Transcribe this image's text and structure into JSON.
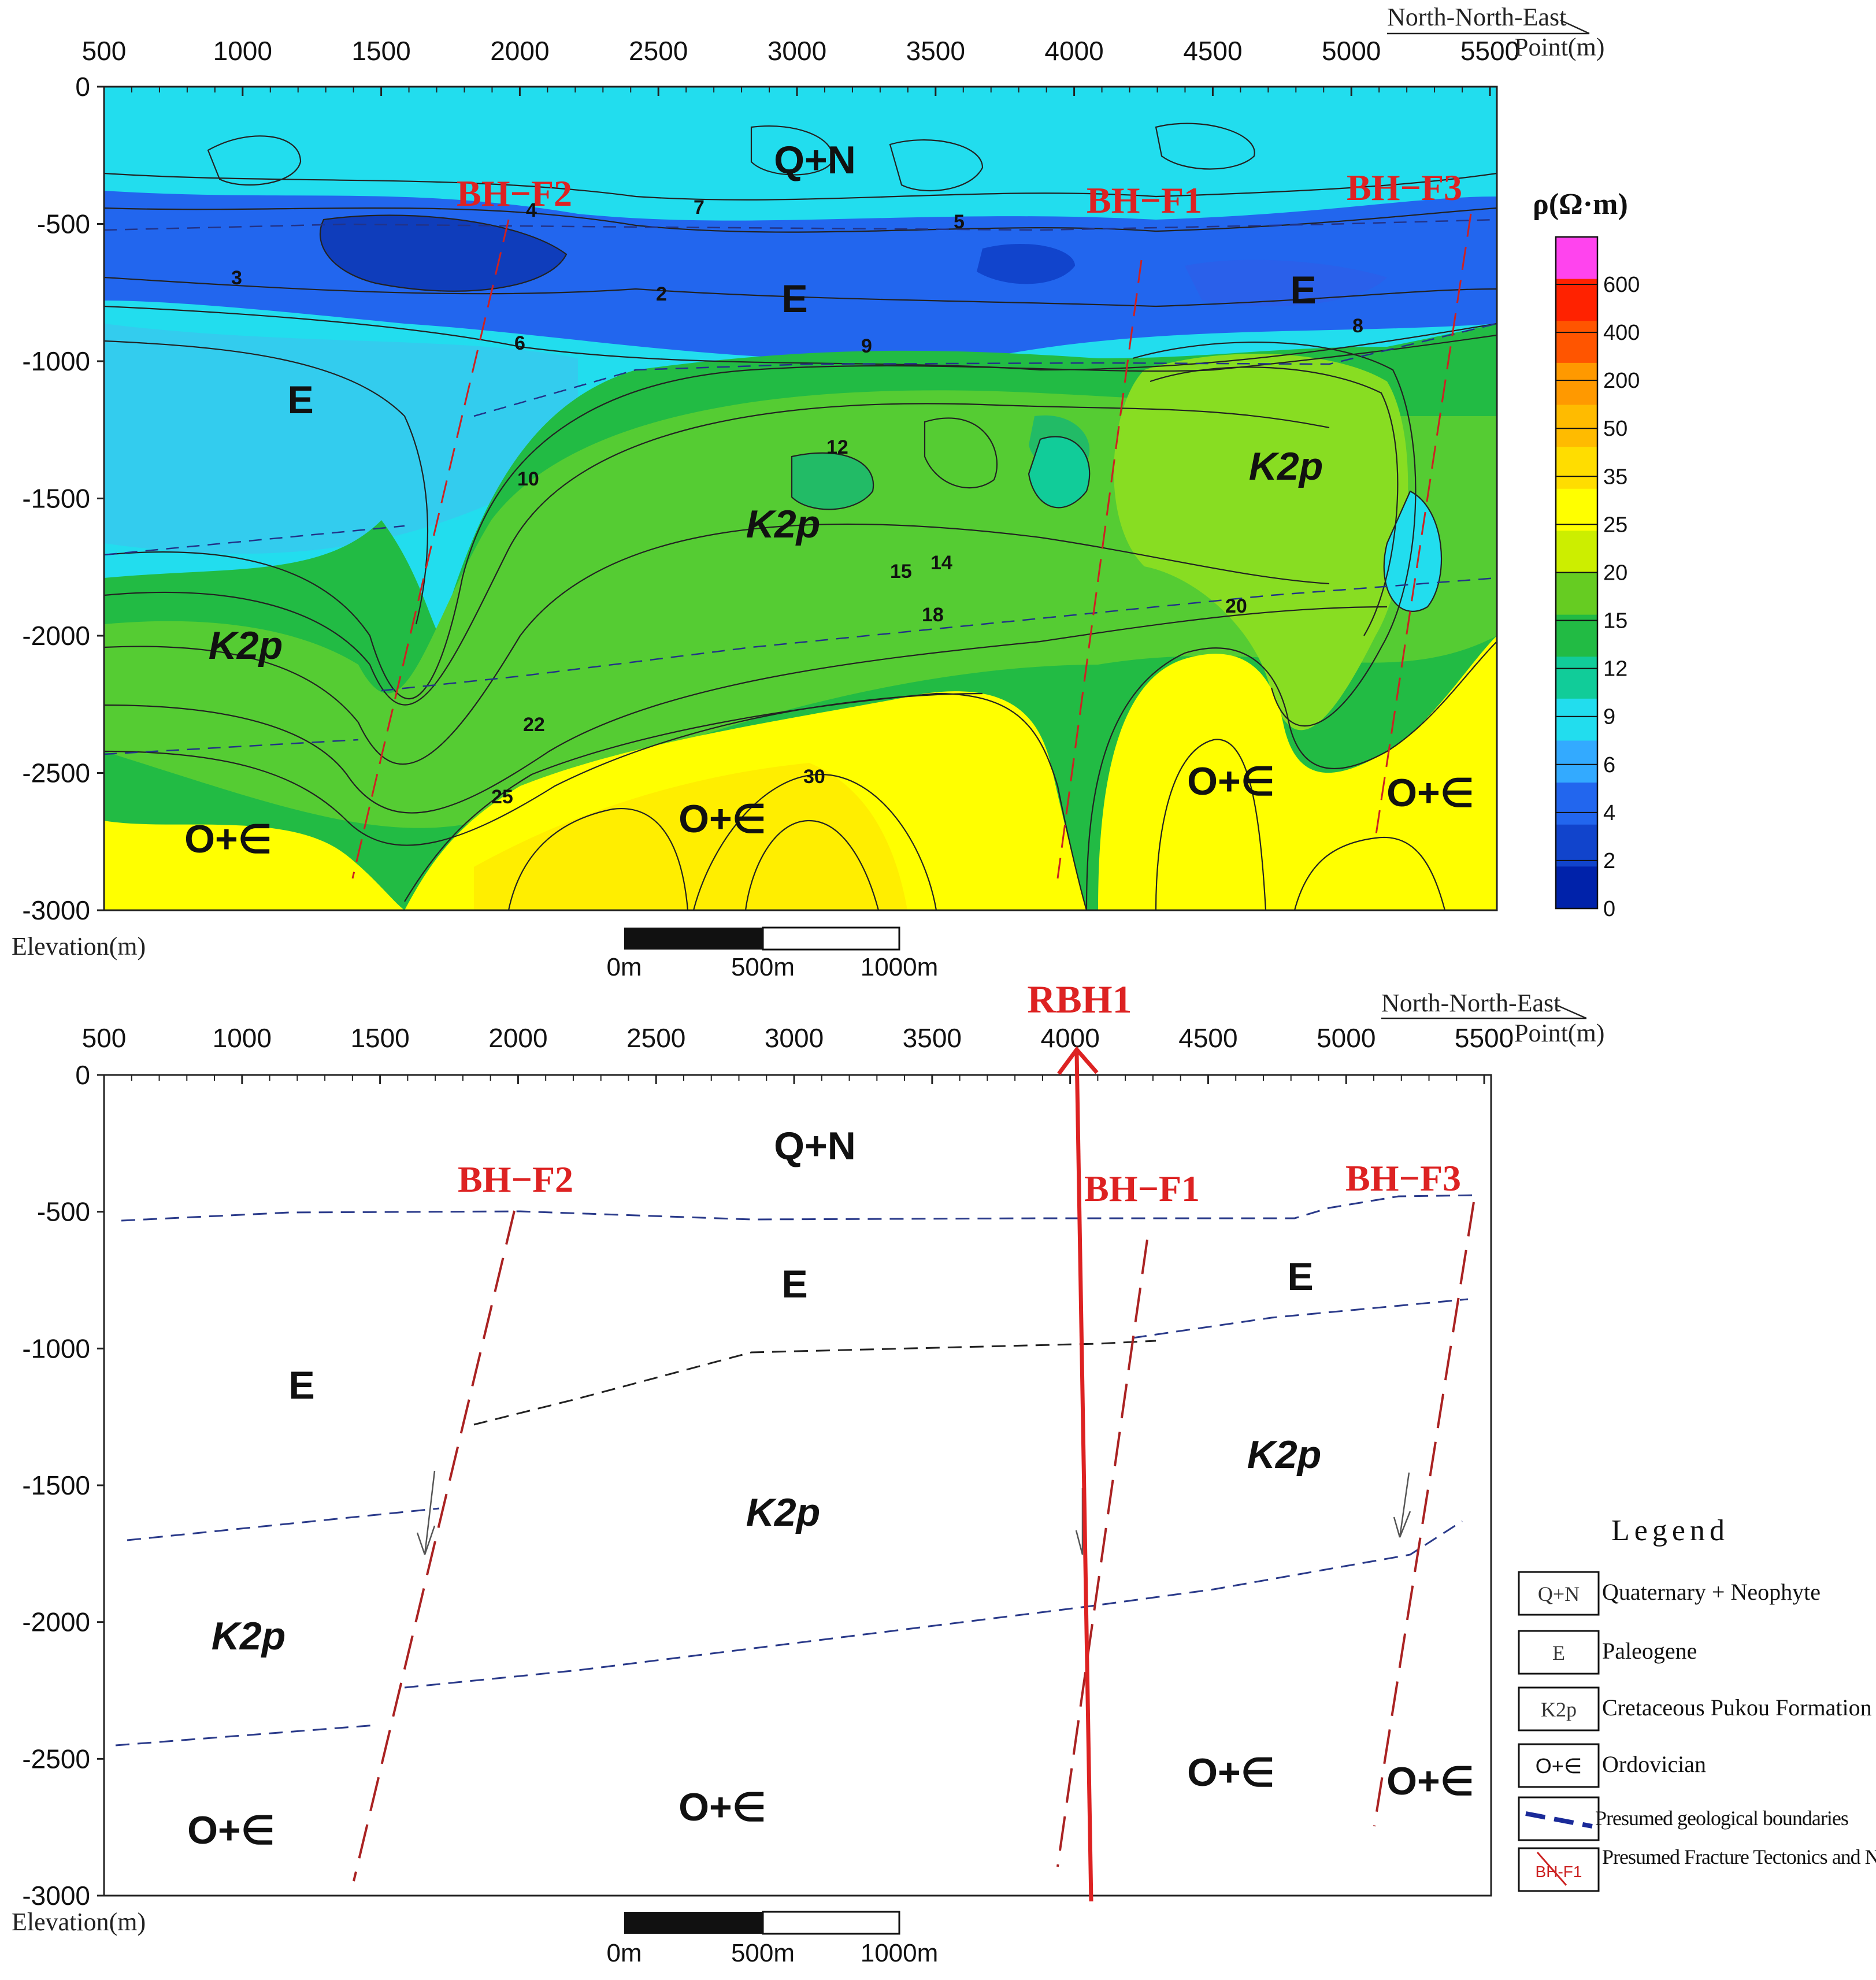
{
  "top_section": {
    "x_ticks": [
      "500",
      "1000",
      "1500",
      "2000",
      "2500",
      "3000",
      "3500",
      "4000",
      "4500",
      "5000",
      "5500"
    ],
    "y_ticks": [
      "0",
      "-500",
      "-1000",
      "-1500",
      "-2000",
      "-2500",
      "-3000"
    ],
    "direction_label": "North-North-East",
    "point_label": "Point(m)",
    "elevation_label": "Elevation(m)",
    "scale_labels": [
      "0m",
      "500m",
      "1000m"
    ],
    "faults": [
      "BH−F2",
      "BH−F1",
      "BH−F3"
    ],
    "formations": [
      "Q+N",
      "E",
      "E",
      "E",
      "K2p",
      "K2p",
      "K2p",
      "O+∈",
      "O+∈",
      "O+∈",
      "O+∈"
    ],
    "contour_labels": [
      "2",
      "3",
      "4",
      "5",
      "6",
      "7",
      "8",
      "9",
      "10",
      "12",
      "14",
      "15",
      "18",
      "20",
      "22",
      "25",
      "30"
    ],
    "colorbar": {
      "title": "ρ(Ω·m)",
      "labels": [
        "600",
        "400",
        "200",
        "50",
        "35",
        "25",
        "20",
        "15",
        "12",
        "9",
        "6",
        "4",
        "2",
        "0"
      ],
      "colors": [
        "#ff44ee",
        "#ff2200",
        "#ff5500",
        "#ff9900",
        "#ffbb00",
        "#ffdd00",
        "#ffff00",
        "#ccee00",
        "#66cc22",
        "#22bb44",
        "#11cc99",
        "#22ddee",
        "#33aaff",
        "#2266ee",
        "#1144cc",
        "#0022aa"
      ]
    }
  },
  "bottom_section": {
    "well_label": "RBH1",
    "faults": [
      "BH−F2",
      "BH−F1",
      "BH−F3"
    ],
    "formations": [
      "Q+N",
      "E",
      "E",
      "E",
      "K2p",
      "K2p",
      "K2p",
      "O+∈",
      "O+∈",
      "O+∈",
      "O+∈"
    ]
  },
  "legend": {
    "title": "Legend",
    "items": [
      {
        "symbol": "Q+N",
        "label": "Quaternary + Neophyte"
      },
      {
        "symbol": "E",
        "label": "Paleogene"
      },
      {
        "symbol": "K2p",
        "label": "Cretaceous Pukou Formation"
      },
      {
        "symbol": "O+∈",
        "label": "Ordovician"
      },
      {
        "symbol": "",
        "label": "Presumed geological boundaries"
      },
      {
        "symbol": "BH-F1",
        "label": "Presumed Fracture Tectonics and Numbering"
      }
    ]
  }
}
